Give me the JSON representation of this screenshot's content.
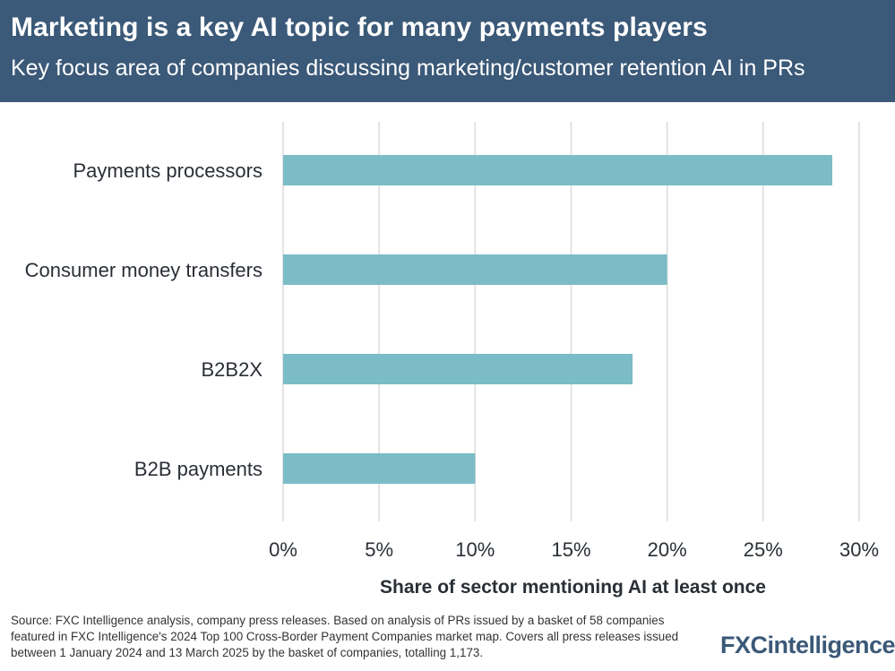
{
  "header": {
    "title": "Marketing is a key AI topic for many payments players",
    "subtitle": "Key focus area of companies discussing marketing/customer retention AI in PRs"
  },
  "chart_data": {
    "type": "bar",
    "orientation": "horizontal",
    "categories": [
      "Payments processors",
      "Consumer money transfers",
      "B2B2X",
      "B2B payments"
    ],
    "values": [
      28.6,
      20.0,
      18.2,
      10.0
    ],
    "xlabel": "Share of sector mentioning AI at least once",
    "xlim": [
      0,
      30
    ],
    "xticks": [
      "0%",
      "5%",
      "10%",
      "15%",
      "20%",
      "25%",
      "30%"
    ],
    "grid": "vertical",
    "bar_color": "#7bbcc7"
  },
  "footer": {
    "source": "Source: FXC Intelligence analysis, company press releases. Based on analysis of PRs issued by a basket of 58 companies featured in FXC Intelligence's 2024 Top 100 Cross-Border Payment Companies market map. Covers all press releases issued between 1 January 2024 and 13 March 2025 by the basket of companies, totalling 1,173.",
    "logo_fx": "FXC",
    "logo_intel": "intelligence"
  },
  "colors": {
    "header_bg": "#3b5978",
    "bar": "#7bbcc7",
    "grid": "#dcdcdc",
    "text": "#2a2f36"
  }
}
